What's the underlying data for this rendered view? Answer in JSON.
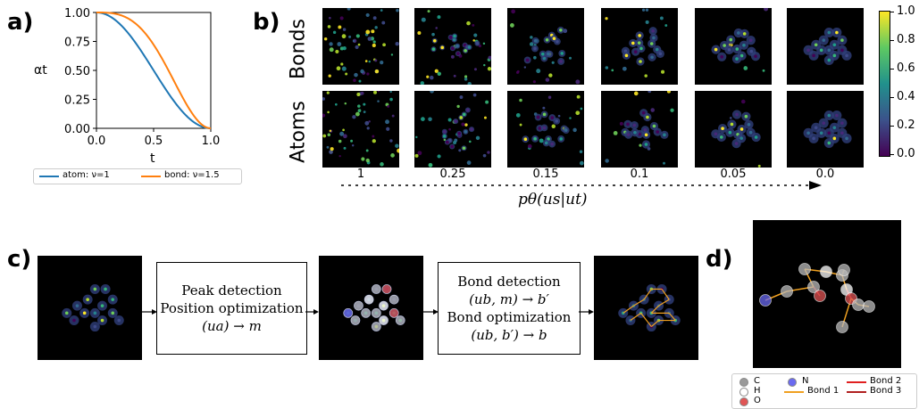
{
  "panel_labels": {
    "a": "a)",
    "b": "b)",
    "c": "c)",
    "d": "d)"
  },
  "panel_a": {
    "ylabel": "αt",
    "xlabel": "t",
    "yticks": [
      "1.00",
      "0.75",
      "0.50",
      "0.25",
      "0.00"
    ],
    "xticks": [
      "0.0",
      "0.5",
      "1.0"
    ],
    "legend": [
      {
        "label": "atom: ν=1",
        "color": "#1f77b4"
      },
      {
        "label": "bond: ν=1.5",
        "color": "#ff7f0e"
      }
    ]
  },
  "chart_data": {
    "type": "line",
    "xlim": [
      0,
      1
    ],
    "ylim": [
      0,
      1
    ],
    "xlabel": "t",
    "ylabel": "αt",
    "series": [
      {
        "name": "atom: ν=1",
        "nu": 1,
        "x": [
          0,
          0.1,
          0.2,
          0.3,
          0.4,
          0.5,
          0.6,
          0.7,
          0.8,
          0.9,
          1.0
        ],
        "values": [
          1.0,
          0.976,
          0.905,
          0.794,
          0.655,
          0.5,
          0.345,
          0.206,
          0.095,
          0.024,
          0.0
        ]
      },
      {
        "name": "bond: ν=1.5",
        "nu": 1.5,
        "x": [
          0,
          0.1,
          0.2,
          0.3,
          0.4,
          0.5,
          0.6,
          0.7,
          0.8,
          0.9,
          1.0
        ],
        "values": [
          1.0,
          0.992,
          0.955,
          0.88,
          0.77,
          0.646,
          0.5,
          0.344,
          0.194,
          0.069,
          0.0
        ]
      }
    ]
  },
  "panel_b": {
    "row_labels": [
      "Bonds",
      "Atoms"
    ],
    "column_labels": [
      "1",
      "0.25",
      "0.15",
      "0.1",
      "0.05",
      "0.0"
    ],
    "axis_label": "pθ(us|ut)",
    "colorbar_ticks": [
      "1.0",
      "0.8",
      "0.6",
      "0.4",
      "0.2",
      "0.0"
    ]
  },
  "panel_c": {
    "box1": [
      "Peak detection",
      "Position optimization",
      "(ua) → m"
    ],
    "box2": [
      "Bond detection",
      "(ub, m) → b′",
      "Bond optimization",
      "(ub, b′) → b"
    ]
  },
  "panel_d": {
    "legend": [
      {
        "label": "C",
        "color": "#9a9a9a",
        "kind": "dot"
      },
      {
        "label": "H",
        "color": "#ffffff",
        "kind": "dot"
      },
      {
        "label": "O",
        "color": "#e05555",
        "kind": "dot"
      },
      {
        "label": "N",
        "color": "#6a6af0",
        "kind": "dot"
      },
      {
        "label": "Bond 1",
        "color": "#f0a020",
        "kind": "line"
      },
      {
        "label": "Bond 2",
        "color": "#e02020",
        "kind": "line"
      },
      {
        "label": "Bond 3",
        "color": "#b02020",
        "kind": "line"
      }
    ]
  }
}
